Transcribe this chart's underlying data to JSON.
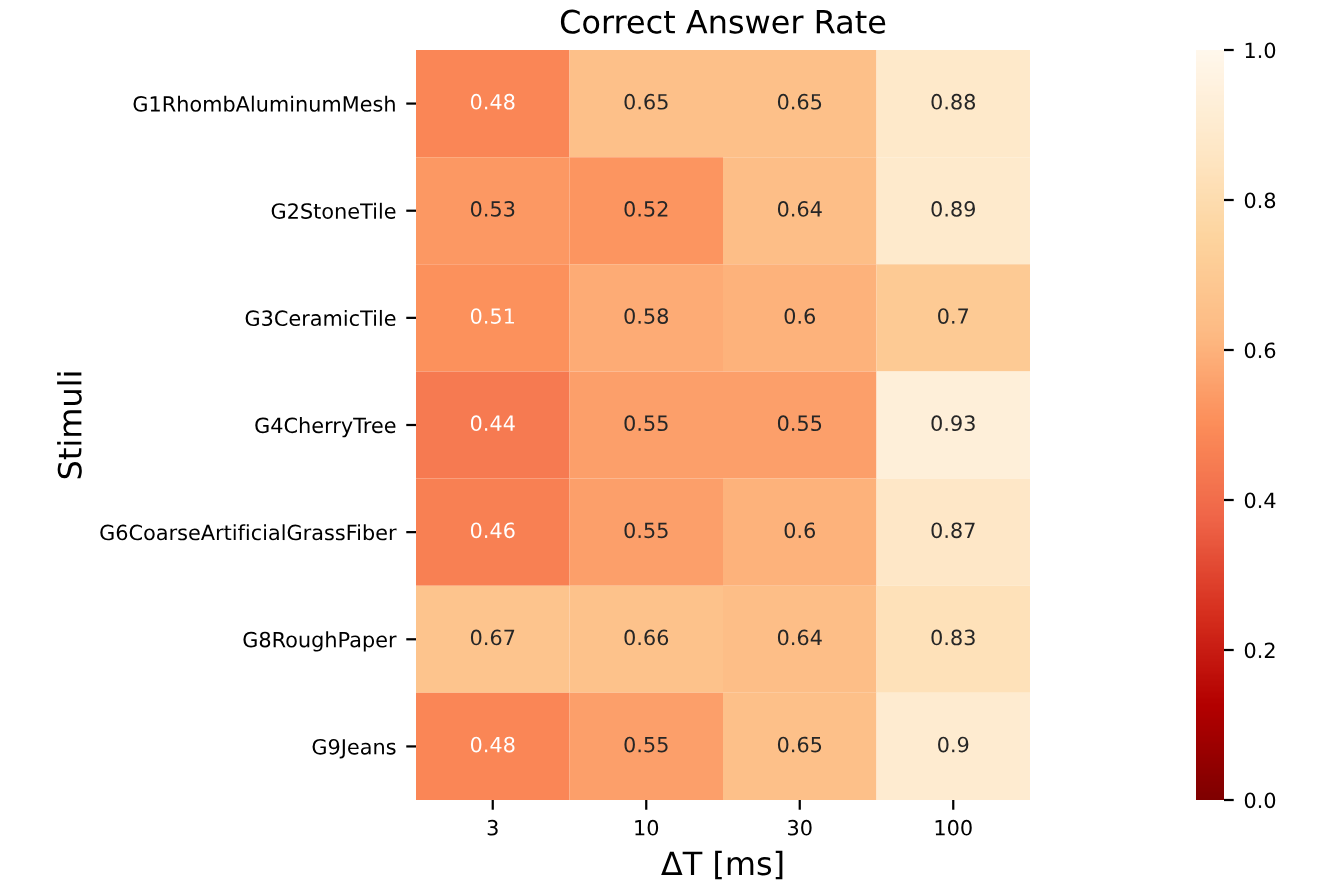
{
  "chart_data": {
    "type": "heatmap",
    "title": "Correct Answer Rate",
    "xlabel": "ΔT [ms]",
    "ylabel": "Stimuli",
    "categories": [
      "3",
      "10",
      "30",
      "100"
    ],
    "y_categories": [
      "G1RhombAluminumMesh",
      "G2StoneTile",
      "G3CeramicTile",
      "G4CherryTree",
      "G6CoarseArtificialGrassFiber",
      "G8RoughPaper",
      "G9Jeans"
    ],
    "cells": [
      [
        0.48,
        0.65,
        0.65,
        0.88
      ],
      [
        0.53,
        0.52,
        0.64,
        0.89
      ],
      [
        0.51,
        0.58,
        0.6,
        0.7
      ],
      [
        0.44,
        0.55,
        0.55,
        0.93
      ],
      [
        0.46,
        0.55,
        0.6,
        0.87
      ],
      [
        0.67,
        0.66,
        0.64,
        0.83
      ],
      [
        0.48,
        0.55,
        0.65,
        0.9
      ]
    ],
    "clim": [
      0,
      1
    ],
    "cticks": [
      {
        "value": 0,
        "label": "0.0"
      },
      0.2,
      0.4,
      0.6,
      0.8,
      {
        "value": 1,
        "label": "1.0"
      }
    ],
    "data_labels": true
  }
}
